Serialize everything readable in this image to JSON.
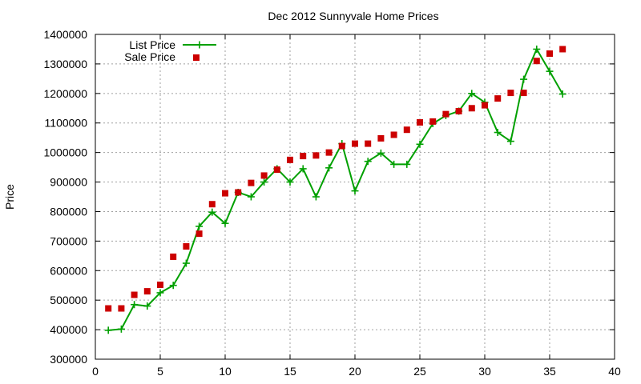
{
  "chart_data": {
    "type": "line",
    "title": "Dec 2012 Sunnyvale Home Prices",
    "xlabel": "",
    "ylabel": "Price",
    "xlim": [
      0,
      40
    ],
    "ylim": [
      300000,
      1400000
    ],
    "x_ticks": [
      0,
      5,
      10,
      15,
      20,
      25,
      30,
      35,
      40
    ],
    "y_ticks": [
      300000,
      400000,
      500000,
      600000,
      700000,
      800000,
      900000,
      1000000,
      1100000,
      1200000,
      1300000,
      1400000
    ],
    "grid": true,
    "legend_position": "top-left",
    "series": [
      {
        "name": "List Price",
        "style": "line with plus markers",
        "color": "#00a000",
        "points": [
          [
            1,
            398000
          ],
          [
            2,
            402000
          ],
          [
            3,
            485000
          ],
          [
            4,
            480000
          ],
          [
            5,
            525000
          ],
          [
            6,
            550000
          ],
          [
            7,
            625000
          ],
          [
            8,
            750000
          ],
          [
            9,
            798000
          ],
          [
            10,
            760000
          ],
          [
            11,
            865000
          ],
          [
            12,
            850000
          ],
          [
            13,
            900000
          ],
          [
            14,
            945000
          ],
          [
            15,
            900000
          ],
          [
            16,
            945000
          ],
          [
            17,
            850000
          ],
          [
            18,
            948000
          ],
          [
            19,
            1030000
          ],
          [
            20,
            870000
          ],
          [
            21,
            970000
          ],
          [
            22,
            998000
          ],
          [
            23,
            960000
          ],
          [
            24,
            960000
          ],
          [
            25,
            1028000
          ],
          [
            26,
            1098000
          ],
          [
            27,
            1125000
          ],
          [
            28,
            1140000
          ],
          [
            29,
            1200000
          ],
          [
            30,
            1170000
          ],
          [
            31,
            1068000
          ],
          [
            32,
            1038000
          ],
          [
            33,
            1248000
          ],
          [
            34,
            1350000
          ],
          [
            35,
            1275000
          ],
          [
            36,
            1198000
          ]
        ]
      },
      {
        "name": "Sale Price",
        "style": "square markers",
        "color": "#cc0000",
        "points": [
          [
            1,
            472000
          ],
          [
            2,
            472000
          ],
          [
            3,
            518000
          ],
          [
            4,
            530000
          ],
          [
            5,
            552000
          ],
          [
            6,
            647000
          ],
          [
            7,
            682000
          ],
          [
            8,
            725000
          ],
          [
            9,
            825000
          ],
          [
            10,
            862000
          ],
          [
            11,
            865000
          ],
          [
            12,
            897000
          ],
          [
            13,
            922000
          ],
          [
            14,
            942000
          ],
          [
            15,
            975000
          ],
          [
            16,
            988000
          ],
          [
            17,
            990000
          ],
          [
            18,
            1000000
          ],
          [
            19,
            1022000
          ],
          [
            20,
            1030000
          ],
          [
            21,
            1030000
          ],
          [
            22,
            1048000
          ],
          [
            23,
            1060000
          ],
          [
            24,
            1077000
          ],
          [
            25,
            1102000
          ],
          [
            26,
            1105000
          ],
          [
            27,
            1130000
          ],
          [
            28,
            1140000
          ],
          [
            29,
            1150000
          ],
          [
            30,
            1160000
          ],
          [
            31,
            1183000
          ],
          [
            32,
            1202000
          ],
          [
            33,
            1202000
          ],
          [
            34,
            1310000
          ],
          [
            35,
            1335000
          ],
          [
            36,
            1350000
          ]
        ]
      }
    ]
  }
}
